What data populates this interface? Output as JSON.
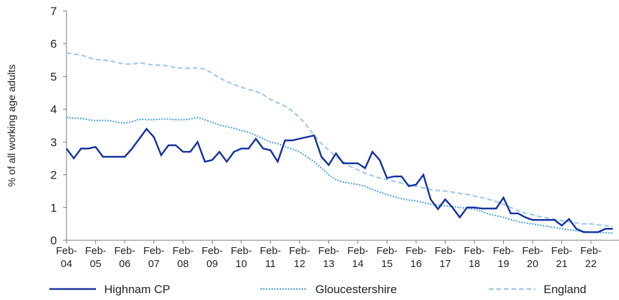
{
  "chart_data": {
    "type": "line",
    "y_label": "% of all working age adults",
    "categories": [
      "Feb-04",
      null,
      null,
      null,
      "Feb-05",
      null,
      null,
      null,
      "Feb-06",
      null,
      null,
      null,
      "Feb-07",
      null,
      null,
      null,
      "Feb-08",
      null,
      null,
      null,
      "Feb-09",
      null,
      null,
      null,
      "Feb-10",
      null,
      null,
      null,
      "Feb-11",
      null,
      null,
      null,
      "Feb-12",
      null,
      null,
      null,
      "Feb-13",
      null,
      null,
      null,
      "Feb-14",
      null,
      null,
      null,
      "Feb-15",
      null,
      null,
      null,
      "Feb-16",
      null,
      null,
      null,
      "Feb-17",
      null,
      null,
      null,
      "Feb-18",
      null,
      null,
      null,
      "Feb-19",
      null,
      null,
      null,
      "Feb-20",
      null,
      null,
      null,
      "Feb-21",
      null,
      null,
      null,
      "Feb-22",
      null,
      null,
      null
    ],
    "series": [
      {
        "name": "Highnam CP",
        "color": "#13319e",
        "dash": "solid",
        "values": [
          2.8,
          2.5,
          2.8,
          2.8,
          2.85,
          2.55,
          2.55,
          2.55,
          2.55,
          2.8,
          3.1,
          3.4,
          3.15,
          2.6,
          2.9,
          2.9,
          2.7,
          2.7,
          3.0,
          2.4,
          2.45,
          2.7,
          2.4,
          2.7,
          2.8,
          2.8,
          3.1,
          2.8,
          2.75,
          2.4,
          3.05,
          3.05,
          3.1,
          3.15,
          3.2,
          2.55,
          2.3,
          2.65,
          2.35,
          2.35,
          2.35,
          2.2,
          2.7,
          2.45,
          1.9,
          1.95,
          1.95,
          1.65,
          1.7,
          2.0,
          1.25,
          0.95,
          1.25,
          1.0,
          0.7,
          1.0,
          1.0,
          0.97,
          0.97,
          0.97,
          1.3,
          0.82,
          0.82,
          0.7,
          0.62,
          0.62,
          0.62,
          0.62,
          0.45,
          0.65,
          0.35,
          0.25,
          0.25,
          0.25,
          0.35,
          0.35
        ]
      },
      {
        "name": "Gloucestershire",
        "color": "#4aa0e6",
        "dash": "dotted",
        "values": [
          3.75,
          3.73,
          3.72,
          3.68,
          3.65,
          3.66,
          3.65,
          3.6,
          3.58,
          3.62,
          3.7,
          3.68,
          3.68,
          3.7,
          3.7,
          3.68,
          3.68,
          3.7,
          3.75,
          3.68,
          3.6,
          3.52,
          3.47,
          3.42,
          3.35,
          3.3,
          3.2,
          3.1,
          3.0,
          2.95,
          2.85,
          2.78,
          2.7,
          2.55,
          2.4,
          2.2,
          2.0,
          1.85,
          1.78,
          1.74,
          1.7,
          1.65,
          1.55,
          1.47,
          1.4,
          1.33,
          1.27,
          1.23,
          1.2,
          1.15,
          1.1,
          1.07,
          1.05,
          1.03,
          1.0,
          0.98,
          0.95,
          0.88,
          0.8,
          0.75,
          0.7,
          0.63,
          0.57,
          0.53,
          0.5,
          0.46,
          0.43,
          0.39,
          0.35,
          0.32,
          0.29,
          0.27,
          0.25,
          0.24,
          0.23,
          0.22
        ]
      },
      {
        "name": "England",
        "color": "#9fc8ef",
        "dash": "dashed",
        "values": [
          5.72,
          5.68,
          5.66,
          5.58,
          5.52,
          5.5,
          5.48,
          5.42,
          5.38,
          5.38,
          5.42,
          5.38,
          5.35,
          5.35,
          5.32,
          5.27,
          5.25,
          5.25,
          5.27,
          5.22,
          5.1,
          4.95,
          4.85,
          4.75,
          4.68,
          4.6,
          4.55,
          4.45,
          4.3,
          4.2,
          4.1,
          3.95,
          3.75,
          3.5,
          3.2,
          2.95,
          2.75,
          2.55,
          2.4,
          2.25,
          2.15,
          2.05,
          1.97,
          1.9,
          1.85,
          1.8,
          1.75,
          1.7,
          1.65,
          1.6,
          1.55,
          1.52,
          1.5,
          1.47,
          1.43,
          1.4,
          1.35,
          1.3,
          1.25,
          1.18,
          1.1,
          1.0,
          0.9,
          0.83,
          0.78,
          0.72,
          0.68,
          0.65,
          0.6,
          0.57,
          0.53,
          0.5,
          0.5,
          0.47,
          0.45,
          0.42
        ]
      }
    ],
    "ylim": [
      0,
      7
    ],
    "yticks": [
      0,
      1,
      2,
      3,
      4,
      5,
      6,
      7
    ],
    "grid": false,
    "legend": "bottom"
  }
}
